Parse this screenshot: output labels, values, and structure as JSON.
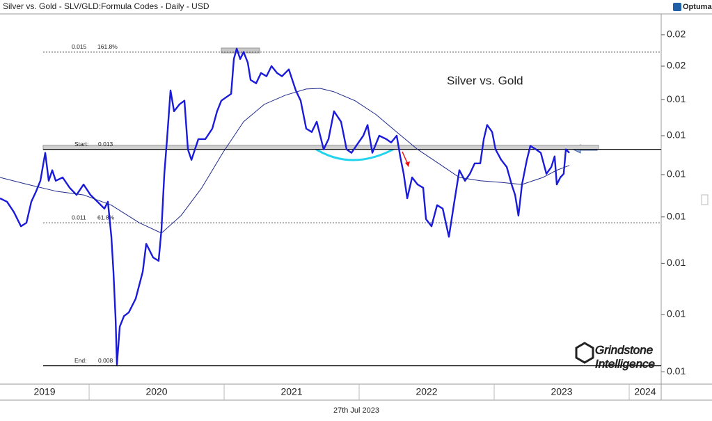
{
  "chart_data": {
    "type": "line",
    "title": "Silver vs. Gold - SLV/GLD:Formula Codes - Daily - USD",
    "brand": "Optuma",
    "annotation": "Silver vs. Gold",
    "date_label": "27th Jul 2023",
    "logo": [
      "Grindstone",
      "Intelligence"
    ],
    "log_scale": true,
    "xlim": [
      2019.34,
      2024.237
    ],
    "ylim": [
      0.0078,
      0.0167
    ],
    "xticks": [
      {
        "value": 2019,
        "label": "2019"
      },
      {
        "value": 2020,
        "label": "2020"
      },
      {
        "value": 2021,
        "label": "2021"
      },
      {
        "value": 2022,
        "label": "2022"
      },
      {
        "value": 2023,
        "label": "2023"
      },
      {
        "value": 2024,
        "label": "2024"
      }
    ],
    "yticks": [
      {
        "value": 0.016,
        "label": "0.02"
      },
      {
        "value": 0.015,
        "label": "0.02"
      },
      {
        "value": 0.014,
        "label": "0.01"
      },
      {
        "value": 0.013,
        "label": "0.01"
      },
      {
        "value": 0.012,
        "label": "0.01"
      },
      {
        "value": 0.011,
        "label": "0.01"
      },
      {
        "value": 0.01,
        "label": "0.01"
      },
      {
        "value": 0.009,
        "label": "0.01"
      },
      {
        "value": 0.008,
        "label": "0.01"
      }
    ],
    "fib_levels": [
      {
        "value": 0.01544,
        "label": "0.015",
        "tag": "161.8%",
        "dashed": true
      },
      {
        "value": 0.01264,
        "label": "0.013",
        "tag": "Start:",
        "dashed": false
      },
      {
        "value": 0.01087,
        "label": "0.011",
        "tag": "61.8%",
        "dashed": true
      },
      {
        "value": 0.0081,
        "label": "0.008",
        "tag": "End:",
        "dashed": false
      }
    ],
    "series": [
      {
        "color": "#1a1adb",
        "width": 2.4,
        "x": [
          2019.34,
          2019.392,
          2019.443,
          2019.495,
          2019.536,
          2019.572,
          2019.608,
          2019.639,
          2019.675,
          2019.701,
          2019.727,
          2019.753,
          2019.804,
          2019.856,
          2019.907,
          2019.959,
          2020.01,
          2020.062,
          2020.113,
          2020.139,
          2020.165,
          2020.18,
          2020.196,
          2020.206,
          2020.227,
          2020.258,
          2020.294,
          2020.345,
          2020.397,
          2020.423,
          2020.448,
          2020.474,
          2020.515,
          2020.536,
          2020.557,
          2020.577,
          2020.603,
          2020.629,
          2020.67,
          2020.706,
          2020.732,
          2020.758,
          2020.809,
          2020.861,
          2020.912,
          2020.948,
          2020.979,
          2021.015,
          2021.052,
          2021.072,
          2021.093,
          2021.119,
          2021.144,
          2021.175,
          2021.196,
          2021.237,
          2021.273,
          2021.314,
          2021.351,
          2021.392,
          2021.428,
          2021.479,
          2021.531,
          2021.567,
          2021.608,
          2021.649,
          2021.686,
          2021.737,
          2021.773,
          2021.814,
          2021.866,
          2021.907,
          2021.943,
          2021.995,
          2022.031,
          2022.062,
          2022.098,
          2022.149,
          2022.201,
          2022.237,
          2022.278,
          2022.304,
          2022.33,
          2022.356,
          2022.392,
          2022.433,
          2022.474,
          2022.495,
          2022.536,
          2022.577,
          2022.619,
          2022.665,
          2022.701,
          2022.742,
          2022.784,
          2022.82,
          2022.856,
          2022.897,
          2022.923,
          2022.948,
          2022.985,
          2023.01,
          2023.052,
          2023.093,
          2023.129,
          2023.155,
          2023.18,
          2023.206,
          2023.242,
          2023.268,
          2023.309,
          2023.345,
          2023.387,
          2023.423,
          2023.448,
          2023.464,
          2023.49,
          2023.515,
          2023.531,
          2023.557
        ],
        "values": [
          0.01143,
          0.01135,
          0.01111,
          0.01079,
          0.01087,
          0.01135,
          0.0116,
          0.01185,
          0.01255,
          0.01185,
          0.01211,
          0.01185,
          0.01193,
          0.01168,
          0.01151,
          0.01176,
          0.01151,
          0.01135,
          0.01119,
          0.01135,
          0.01056,
          0.00983,
          0.00891,
          0.00812,
          0.00878,
          0.00897,
          0.00904,
          0.0093,
          0.00983,
          0.01041,
          0.01027,
          0.01012,
          0.01005,
          0.01072,
          0.01202,
          0.01291,
          0.01427,
          0.01367,
          0.01387,
          0.01397,
          0.01264,
          0.01237,
          0.01291,
          0.01291,
          0.01319,
          0.01367,
          0.01397,
          0.01407,
          0.01417,
          0.01522,
          0.01555,
          0.01522,
          0.01544,
          0.01511,
          0.01458,
          0.01448,
          0.01479,
          0.01469,
          0.015,
          0.01479,
          0.01469,
          0.0149,
          0.01427,
          0.01397,
          0.01319,
          0.0131,
          0.01338,
          0.01264,
          0.01291,
          0.01367,
          0.01338,
          0.01264,
          0.01255,
          0.01282,
          0.013,
          0.01329,
          0.01255,
          0.013,
          0.01291,
          0.01282,
          0.013,
          0.01246,
          0.01202,
          0.01143,
          0.01193,
          0.01176,
          0.01168,
          0.01095,
          0.01079,
          0.01127,
          0.01119,
          0.01056,
          0.01127,
          0.01211,
          0.01185,
          0.01202,
          0.01228,
          0.01228,
          0.01291,
          0.01329,
          0.0131,
          0.01264,
          0.01237,
          0.01219,
          0.01176,
          0.01151,
          0.01103,
          0.01176,
          0.01237,
          0.01273,
          0.01264,
          0.01255,
          0.01202,
          0.01219,
          0.01246,
          0.01176,
          0.01193,
          0.01202,
          0.01264,
          0.01255
        ]
      },
      {
        "color": "#1e2a8c",
        "width": 1,
        "x": [
          2019.34,
          2019.546,
          2019.753,
          2019.959,
          2020.165,
          2020.371,
          2020.536,
          2020.68,
          2020.835,
          2020.99,
          2021.144,
          2021.299,
          2021.454,
          2021.608,
          2021.711,
          2021.814,
          2021.969,
          2022.124,
          2022.278,
          2022.433,
          2022.588,
          2022.742,
          2022.897,
          2023.052,
          2023.206,
          2023.361,
          2023.464,
          2023.557
        ],
        "values": [
          0.01193,
          0.01176,
          0.0116,
          0.01151,
          0.01127,
          0.01087,
          0.01064,
          0.01103,
          0.01168,
          0.01255,
          0.01338,
          0.01387,
          0.01413,
          0.01431,
          0.01433,
          0.01423,
          0.01397,
          0.01358,
          0.0131,
          0.01264,
          0.01228,
          0.01193,
          0.01185,
          0.01181,
          0.01176,
          0.01193,
          0.01211,
          0.01223
        ]
      }
    ]
  }
}
